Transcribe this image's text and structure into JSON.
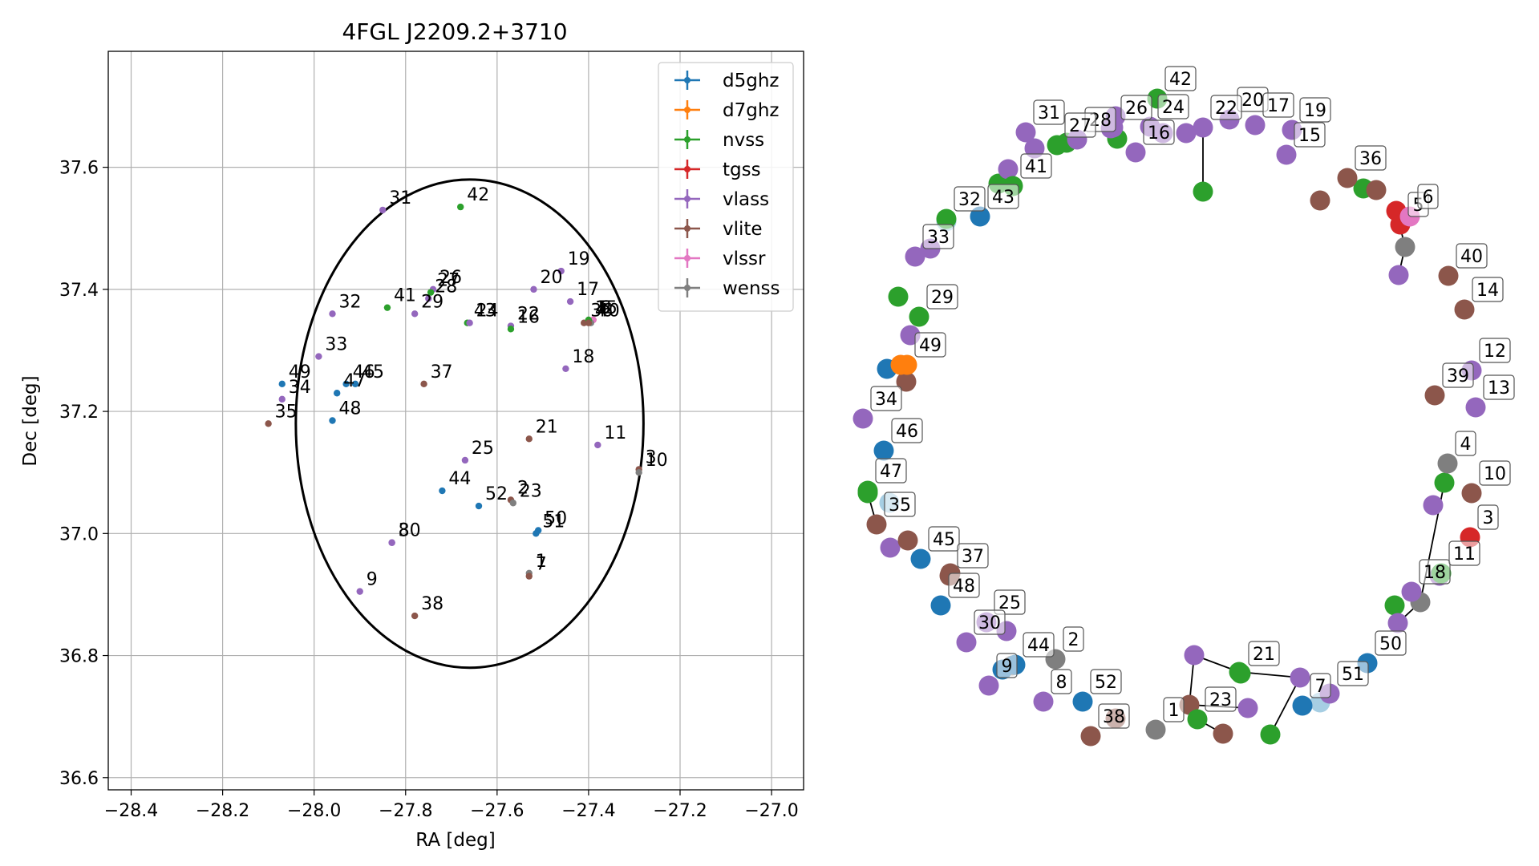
{
  "chart_data": [
    {
      "type": "scatter",
      "title": "4FGL J2209.2+3710",
      "xlabel": "RA [deg]",
      "ylabel": "Dec [deg]",
      "xlim": [
        -28.45,
        -26.93
      ],
      "ylim": [
        36.58,
        37.79
      ],
      "xticks": [
        -28.4,
        -28.2,
        -28.0,
        -27.8,
        -27.6,
        -27.4,
        -27.2,
        -27.0
      ],
      "xtick_labels": [
        "−28.4",
        "−28.2",
        "−28.0",
        "−27.8",
        "−27.6",
        "−27.4",
        "−27.2",
        "−27.0"
      ],
      "yticks": [
        36.6,
        36.8,
        37.0,
        37.2,
        37.4,
        37.6
      ],
      "ytick_labels": [
        "36.6",
        "36.8",
        "37.0",
        "37.2",
        "37.4",
        "37.6"
      ],
      "grid": true,
      "legend_position": "top-right",
      "ellipse": {
        "center": [
          -27.66,
          37.18
        ],
        "ra_semi_axis": 0.38,
        "dec_semi_axis": 0.4
      },
      "series": [
        {
          "name": "d5ghz",
          "color": "#1f77b4"
        },
        {
          "name": "d7ghz",
          "color": "#ff7f0e"
        },
        {
          "name": "nvss",
          "color": "#2ca02c"
        },
        {
          "name": "tgss",
          "color": "#d62728"
        },
        {
          "name": "vlass",
          "color": "#9467bd"
        },
        {
          "name": "vlite",
          "color": "#8c564b"
        },
        {
          "name": "vlssr",
          "color": "#e377c2"
        },
        {
          "name": "wenss",
          "color": "#7f7f7f"
        }
      ],
      "points": [
        {
          "id": "31",
          "x": -27.85,
          "y": 37.53,
          "s": "vlass"
        },
        {
          "id": "42",
          "x": -27.68,
          "y": 37.535,
          "s": "nvss"
        },
        {
          "id": "19",
          "x": -27.46,
          "y": 37.43,
          "s": "vlass"
        },
        {
          "id": "20",
          "x": -27.52,
          "y": 37.4,
          "s": "vlass"
        },
        {
          "id": "26",
          "x": -27.74,
          "y": 37.4,
          "s": "vlass"
        },
        {
          "id": "27",
          "x": -27.745,
          "y": 37.395,
          "s": "nvss"
        },
        {
          "id": "17",
          "x": -27.44,
          "y": 37.38,
          "s": "vlass"
        },
        {
          "id": "41",
          "x": -27.84,
          "y": 37.37,
          "s": "nvss"
        },
        {
          "id": "28",
          "x": -27.75,
          "y": 37.385,
          "s": "vlass"
        },
        {
          "id": "32",
          "x": -27.96,
          "y": 37.36,
          "s": "vlass"
        },
        {
          "id": "29",
          "x": -27.78,
          "y": 37.36,
          "s": "vlass"
        },
        {
          "id": "43",
          "x": -27.665,
          "y": 37.345,
          "s": "nvss"
        },
        {
          "id": "24",
          "x": -27.66,
          "y": 37.345,
          "s": "vlass"
        },
        {
          "id": "22",
          "x": -27.57,
          "y": 37.34,
          "s": "vlass"
        },
        {
          "id": "16",
          "x": -27.57,
          "y": 37.335,
          "s": "nvss"
        },
        {
          "id": "36",
          "x": -27.41,
          "y": 37.345,
          "s": "vlite"
        },
        {
          "id": "5",
          "x": -27.39,
          "y": 37.35,
          "s": "tgss"
        },
        {
          "id": "6",
          "x": -27.39,
          "y": 37.35,
          "s": "vlssr"
        },
        {
          "id": "40",
          "x": -27.395,
          "y": 37.345,
          "s": "wenss"
        },
        {
          "id": "15",
          "x": -27.4,
          "y": 37.35,
          "s": "nvss"
        },
        {
          "id": "4",
          "x": -27.4,
          "y": 37.345,
          "s": "vlite"
        },
        {
          "id": "33",
          "x": -27.99,
          "y": 37.29,
          "s": "vlass"
        },
        {
          "id": "18",
          "x": -27.45,
          "y": 37.27,
          "s": "vlass"
        },
        {
          "id": "49",
          "x": -28.07,
          "y": 37.245,
          "s": "d5ghz"
        },
        {
          "id": "34",
          "x": -28.07,
          "y": 37.22,
          "s": "vlass"
        },
        {
          "id": "46",
          "x": -27.93,
          "y": 37.245,
          "s": "d5ghz"
        },
        {
          "id": "45",
          "x": -27.91,
          "y": 37.245,
          "s": "d5ghz"
        },
        {
          "id": "47",
          "x": -27.95,
          "y": 37.23,
          "s": "d5ghz"
        },
        {
          "id": "37",
          "x": -27.76,
          "y": 37.245,
          "s": "vlite"
        },
        {
          "id": "35",
          "x": -28.1,
          "y": 37.18,
          "s": "vlite"
        },
        {
          "id": "48",
          "x": -27.96,
          "y": 37.185,
          "s": "d5ghz"
        },
        {
          "id": "21",
          "x": -27.53,
          "y": 37.155,
          "s": "vlite"
        },
        {
          "id": "11",
          "x": -27.38,
          "y": 37.145,
          "s": "vlass"
        },
        {
          "id": "25",
          "x": -27.67,
          "y": 37.12,
          "s": "vlass"
        },
        {
          "id": "3",
          "x": -27.29,
          "y": 37.105,
          "s": "vlite"
        },
        {
          "id": "10",
          "x": -27.29,
          "y": 37.1,
          "s": "wenss"
        },
        {
          "id": "44",
          "x": -27.72,
          "y": 37.07,
          "s": "d5ghz"
        },
        {
          "id": "52",
          "x": -27.64,
          "y": 37.045,
          "s": "d5ghz"
        },
        {
          "id": "2",
          "x": -27.57,
          "y": 37.055,
          "s": "vlite"
        },
        {
          "id": "23",
          "x": -27.565,
          "y": 37.05,
          "s": "wenss"
        },
        {
          "id": "50",
          "x": -27.51,
          "y": 37.005,
          "s": "d5ghz"
        },
        {
          "id": "51",
          "x": -27.515,
          "y": 37.0,
          "s": "d5ghz"
        },
        {
          "id": "30",
          "x": -27.83,
          "y": 36.985,
          "s": "vlass"
        },
        {
          "id": "8",
          "x": -27.83,
          "y": 36.985,
          "s": "vlass"
        },
        {
          "id": "1",
          "x": -27.53,
          "y": 36.935,
          "s": "wenss"
        },
        {
          "id": "7",
          "x": -27.53,
          "y": 36.93,
          "s": "vlite"
        },
        {
          "id": "9",
          "x": -27.9,
          "y": 36.905,
          "s": "vlass"
        },
        {
          "id": "38",
          "x": -27.78,
          "y": 36.865,
          "s": "vlite"
        }
      ]
    },
    {
      "type": "diagram",
      "description_labels_only": true,
      "nodes": [
        {
          "id": "42",
          "color": "#2ca02c",
          "label": "42"
        },
        {
          "id": "20",
          "color": "#9467bd",
          "label": "20"
        },
        {
          "id": "17",
          "color": "#9467bd",
          "label": "17"
        },
        {
          "id": "19",
          "color": "#9467bd",
          "label": "19"
        },
        {
          "id": "15",
          "color": "#9467bd",
          "label": "15"
        },
        {
          "id": "22",
          "color": "#9467bd",
          "label": "22"
        },
        {
          "id": "24",
          "color": "#9467bd",
          "label": "24"
        },
        {
          "id": "16",
          "color": "#9467bd",
          "label": "16"
        },
        {
          "id": "26",
          "color": "#9467bd",
          "label": "26"
        },
        {
          "id": "28",
          "color": "#9467bd",
          "label": "28"
        },
        {
          "id": "31",
          "color": "#9467bd",
          "label": "31"
        },
        {
          "id": "27",
          "color": "#2ca02c",
          "label": "27"
        },
        {
          "id": "41",
          "color": "#2ca02c",
          "label": "41"
        },
        {
          "id": "43",
          "color": "#1f77b4",
          "label": "43"
        },
        {
          "id": "32",
          "color": "#2ca02c",
          "label": "32"
        },
        {
          "id": "33",
          "color": "#9467bd",
          "label": "33"
        },
        {
          "id": "29",
          "color": "#2ca02c",
          "label": "29"
        },
        {
          "id": "49",
          "color": "#ff7f0e",
          "label": "49"
        },
        {
          "id": "34",
          "color": "#9467bd",
          "label": "34"
        },
        {
          "id": "46",
          "color": "#1f77b4",
          "label": "46"
        },
        {
          "id": "47",
          "color": "#2ca02c",
          "label": "47"
        },
        {
          "id": "35",
          "color": "#8c564b",
          "label": "35"
        },
        {
          "id": "45",
          "color": "#1f77b4",
          "label": "45"
        },
        {
          "id": "37",
          "color": "#8c564b",
          "label": "37"
        },
        {
          "id": "48",
          "color": "#1f77b4",
          "label": "48"
        },
        {
          "id": "25",
          "color": "#9467bd",
          "label": "25"
        },
        {
          "id": "30",
          "color": "#9467bd",
          "label": "30"
        },
        {
          "id": "44",
          "color": "#1f77b4",
          "label": "44"
        },
        {
          "id": "2",
          "color": "#7f7f7f",
          "label": "2"
        },
        {
          "id": "9",
          "color": "#9467bd",
          "label": "9"
        },
        {
          "id": "8",
          "color": "#9467bd",
          "label": "8"
        },
        {
          "id": "52",
          "color": "#1f77b4",
          "label": "52"
        },
        {
          "id": "38",
          "color": "#8c564b",
          "label": "38"
        },
        {
          "id": "1",
          "color": "#7f7f7f",
          "label": "1"
        },
        {
          "id": "23",
          "color": "#2ca02c",
          "label": "23"
        },
        {
          "id": "21",
          "color": "#2ca02c",
          "label": "21"
        },
        {
          "id": "7",
          "color": "#1f77b4",
          "label": "7"
        },
        {
          "id": "51",
          "color": "#9467bd",
          "label": "51"
        },
        {
          "id": "50",
          "color": "#1f77b4",
          "label": "50"
        },
        {
          "id": "18",
          "color": "#9467bd",
          "label": "18"
        },
        {
          "id": "11",
          "color": "#2ca02c",
          "label": "11"
        },
        {
          "id": "3",
          "color": "#d62728",
          "label": "3"
        },
        {
          "id": "10",
          "color": "#8c564b",
          "label": "10"
        },
        {
          "id": "4",
          "color": "#7f7f7f",
          "label": "4"
        },
        {
          "id": "13",
          "color": "#9467bd",
          "label": "13"
        },
        {
          "id": "39",
          "color": "#8c564b",
          "label": "39"
        },
        {
          "id": "12",
          "color": "#9467bd",
          "label": "12"
        },
        {
          "id": "14",
          "color": "#8c564b",
          "label": "14"
        },
        {
          "id": "40",
          "color": "#8c564b",
          "label": "40"
        },
        {
          "id": "5",
          "color": "#d62728",
          "label": "5"
        },
        {
          "id": "6",
          "color": "#e377c2",
          "label": "6"
        },
        {
          "id": "36",
          "color": "#8c564b",
          "label": "36"
        }
      ]
    }
  ]
}
